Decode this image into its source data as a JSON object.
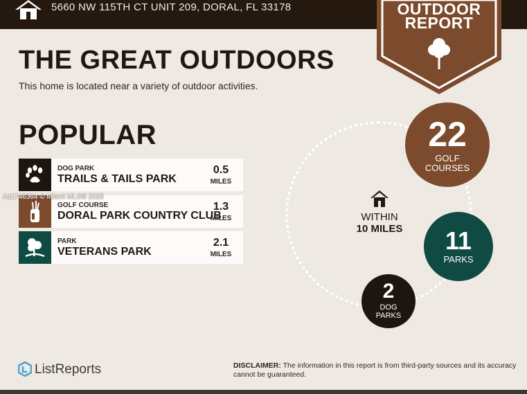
{
  "header": {
    "address": "5660 NW 115TH CT UNIT 209, DORAL, FL 33178",
    "home_icon": "home-icon"
  },
  "badge": {
    "line1": "OUTDOOR",
    "line2": "REPORT",
    "icon": "tree-icon",
    "color": "#7c4a2c"
  },
  "title": "THE GREAT OUTDOORS",
  "subtitle": "This home is located near a variety of outdoor activities.",
  "popular": {
    "heading": "POPULAR",
    "items": [
      {
        "type": "DOG PARK",
        "name": "TRAILS & TAILS PARK",
        "distance": "0.5",
        "unit": "MILES",
        "icon": "paw-icon",
        "color": "#1c1510"
      },
      {
        "type": "GOLF COURSE",
        "name": "DORAL PARK COUNTRY CLUB",
        "distance": "1.3",
        "unit": "MILES",
        "icon": "golf-bag-icon",
        "color": "#7c4a2c"
      },
      {
        "type": "PARK",
        "name": "VETERANS PARK",
        "distance": "2.1",
        "unit": "MILES",
        "icon": "park-icon",
        "color": "#0f4a43"
      }
    ]
  },
  "watermark": "A11746364 © Miami MLS® 2025",
  "within": {
    "line1": "WITHIN",
    "line2": "10 MILES",
    "icon": "home-icon"
  },
  "counts": {
    "golf": {
      "number": "22",
      "label1": "GOLF",
      "label2": "COURSES",
      "color": "#7c4a2c"
    },
    "parks": {
      "number": "11",
      "label1": "PARKS",
      "color": "#0f4a43"
    },
    "dog": {
      "number": "2",
      "label1": "DOG",
      "label2": "PARKS",
      "color": "#1c1510"
    }
  },
  "footer": {
    "logo_text": "ListReports",
    "disclaimer_label": "DISCLAIMER:",
    "disclaimer_text": " The information in this report is from third-party sources and its accuracy cannot be guaranteed."
  }
}
